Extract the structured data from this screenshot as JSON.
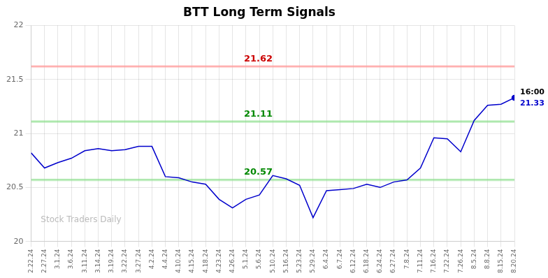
{
  "chart_data": {
    "type": "line",
    "title": "BTT Long Term Signals",
    "categories": [
      "2.22.24",
      "2.27.24",
      "3.1.24",
      "3.6.24",
      "3.11.24",
      "3.14.24",
      "3.19.24",
      "3.22.24",
      "3.27.24",
      "4.2.24",
      "4.4.24",
      "4.10.24",
      "4.15.24",
      "4.18.24",
      "4.23.24",
      "4.26.24",
      "5.1.24",
      "5.6.24",
      "5.10.24",
      "5.16.24",
      "5.23.24",
      "5.29.24",
      "6.4.24",
      "6.7.24",
      "6.12.24",
      "6.18.24",
      "6.24.24",
      "6.27.24",
      "7.8.24",
      "7.11.24",
      "7.16.24",
      "7.22.24",
      "7.26.24",
      "8.5.24",
      "8.8.24",
      "8.15.24",
      "8.20.24"
    ],
    "values": [
      20.82,
      20.68,
      20.73,
      20.77,
      20.84,
      20.86,
      20.84,
      20.85,
      20.88,
      20.88,
      20.6,
      20.59,
      20.55,
      20.53,
      20.39,
      20.31,
      20.39,
      20.43,
      20.61,
      20.58,
      20.52,
      20.22,
      20.47,
      20.48,
      20.49,
      20.53,
      20.5,
      20.55,
      20.57,
      20.68,
      20.96,
      20.95,
      20.83,
      21.12,
      21.26,
      21.27,
      21.33
    ],
    "color": "#0000cc",
    "ylim": [
      20,
      22
    ],
    "yticks": [
      20,
      20.5,
      21,
      21.5,
      22
    ],
    "grid": true,
    "hlines": [
      {
        "value": 21.62,
        "label": "21.62",
        "color": "#ff9999",
        "label_color": "#cc0000"
      },
      {
        "value": 21.11,
        "label": "21.11",
        "color": "#88dd88",
        "label_color": "#008800"
      },
      {
        "value": 20.57,
        "label": "20.57",
        "color": "#88dd88",
        "label_color": "#008800"
      }
    ],
    "end_label": {
      "text": "16:00",
      "value_label": "21.33"
    },
    "watermark": {
      "text": "Stock Traders Daily",
      "color": "#bbbbbb"
    }
  }
}
